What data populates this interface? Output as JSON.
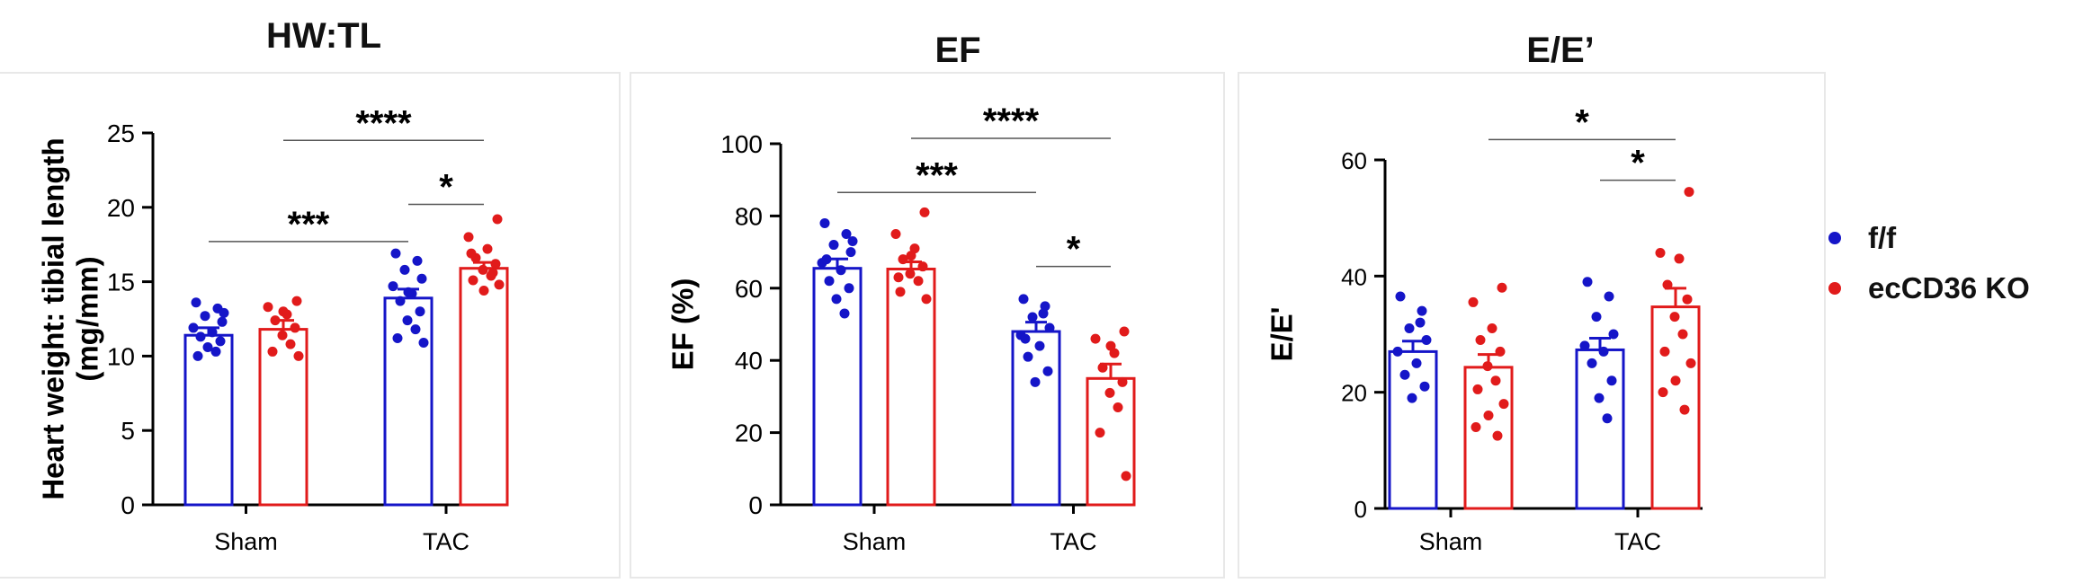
{
  "colors": {
    "ff": "#1515c8",
    "ko": "#e11b1b",
    "axis": "#000000",
    "sig_line": "#555555"
  },
  "legend": {
    "items": [
      {
        "label": "f/f",
        "color": "#1515c8"
      },
      {
        "label": "ecCD36 KO",
        "color": "#e11b1b"
      }
    ]
  },
  "chart_data": [
    {
      "type": "bar",
      "title": "HW:TL",
      "ylabel": "Heart weight: tibial length (mg/mm)",
      "ylabel_lines": [
        "Heart weight: tibial length",
        "(mg/mm)"
      ],
      "ylim": [
        0,
        25
      ],
      "yticks": [
        0,
        5,
        10,
        15,
        20,
        25
      ],
      "categories": [
        "Sham",
        "TAC"
      ],
      "series": [
        {
          "name": "f/f",
          "values": [
            11.4,
            13.9
          ],
          "sem": [
            0.5,
            0.6
          ],
          "points": [
            [
              13.6,
              13.2,
              12.7,
              12.3,
              11.9,
              11.6,
              11.3,
              11.0,
              10.6,
              10.3,
              10.0,
              12.9
            ],
            [
              16.9,
              16.4,
              15.8,
              15.2,
              14.7,
              14.2,
              13.7,
              13.0,
              12.4,
              11.8,
              11.2,
              10.9,
              14.3
            ]
          ]
        },
        {
          "name": "ecCD36 KO",
          "values": [
            11.8,
            15.9
          ],
          "sem": [
            0.6,
            0.4
          ],
          "points": [
            [
              13.7,
              13.3,
              12.8,
              12.4,
              11.9,
              11.4,
              10.8,
              10.3,
              10.0,
              13.0
            ],
            [
              19.2,
              18.0,
              17.2,
              16.6,
              16.2,
              15.8,
              15.4,
              15.1,
              14.8,
              14.4,
              16.9,
              15.6
            ]
          ]
        }
      ],
      "significance": [
        {
          "label": "***",
          "from": [
            0,
            0
          ],
          "to": [
            1,
            0
          ],
          "y": 17.7
        },
        {
          "label": "****",
          "from": [
            0,
            1
          ],
          "to": [
            1,
            1
          ],
          "y": 24.5
        },
        {
          "label": "*",
          "from": [
            1,
            0
          ],
          "to": [
            1,
            1
          ],
          "y": 20.2
        }
      ]
    },
    {
      "type": "bar",
      "title": "EF",
      "ylabel": "EF (%)",
      "ylabel_lines": [
        "EF (%)"
      ],
      "ylim": [
        0,
        100
      ],
      "yticks": [
        0,
        20,
        40,
        60,
        80,
        100
      ],
      "categories": [
        "Sham",
        "TAC"
      ],
      "series": [
        {
          "name": "f/f",
          "values": [
            65.5,
            48.0
          ],
          "sem": [
            2.6,
            2.6
          ],
          "points": [
            [
              78.0,
              75.0,
              72.0,
              70.0,
              67.0,
              65.0,
              62.0,
              60.0,
              57.0,
              53.0,
              68.0,
              73.0
            ],
            [
              57.0,
              55.0,
              52.0,
              49.0,
              47.0,
              44.0,
              41.0,
              37.0,
              34.0,
              53.0,
              46.0
            ]
          ]
        },
        {
          "name": "ecCD36 KO",
          "values": [
            65.3,
            35.0
          ],
          "sem": [
            2.0,
            4.0
          ],
          "points": [
            [
              81.0,
              75.0,
              71.0,
              68.0,
              66.0,
              64.0,
              62.0,
              59.0,
              57.0,
              69.0,
              63.0
            ],
            [
              48.0,
              46.0,
              42.0,
              38.0,
              34.0,
              31.0,
              27.0,
              20.0,
              8.0,
              44.0
            ]
          ]
        }
      ],
      "significance": [
        {
          "label": "***",
          "from": [
            0,
            0
          ],
          "to": [
            1,
            0
          ],
          "y": 86.5
        },
        {
          "label": "****",
          "from": [
            0,
            1
          ],
          "to": [
            1,
            1
          ],
          "y": 101.5
        },
        {
          "label": "*",
          "from": [
            1,
            0
          ],
          "to": [
            1,
            1
          ],
          "y": 66.0
        }
      ]
    },
    {
      "type": "bar",
      "title": "E/E’",
      "ylabel": "E/E'",
      "ylabel_lines": [
        "E/E'"
      ],
      "ylim": [
        0,
        60
      ],
      "yticks": [
        0,
        20,
        40,
        60
      ],
      "categories": [
        "Sham",
        "TAC"
      ],
      "series": [
        {
          "name": "f/f",
          "values": [
            27.0,
            27.3
          ],
          "sem": [
            1.8,
            2.0
          ],
          "points": [
            [
              36.5,
              34.0,
              31.0,
              29.0,
              27.0,
              25.0,
              23.0,
              21.0,
              19.0,
              32.0
            ],
            [
              39.0,
              36.5,
              33.0,
              30.0,
              28.0,
              27.0,
              25.0,
              22.0,
              19.0,
              15.5
            ]
          ]
        },
        {
          "name": "ecCD36 KO",
          "values": [
            24.3,
            34.7
          ],
          "sem": [
            2.2,
            3.2
          ],
          "points": [
            [
              38.0,
              35.5,
              31.0,
              29.0,
              27.0,
              24.5,
              22.0,
              20.5,
              18.0,
              16.0,
              14.0,
              12.5
            ],
            [
              54.5,
              44.0,
              43.0,
              38.5,
              36.0,
              33.0,
              30.0,
              27.0,
              25.0,
              22.0,
              20.0,
              17.0
            ]
          ]
        }
      ],
      "significance": [
        {
          "label": "*",
          "from": [
            0,
            1
          ],
          "to": [
            1,
            1
          ],
          "y": 63.5
        },
        {
          "label": "*",
          "from": [
            1,
            0
          ],
          "to": [
            1,
            1
          ],
          "y": 56.5
        }
      ]
    }
  ]
}
